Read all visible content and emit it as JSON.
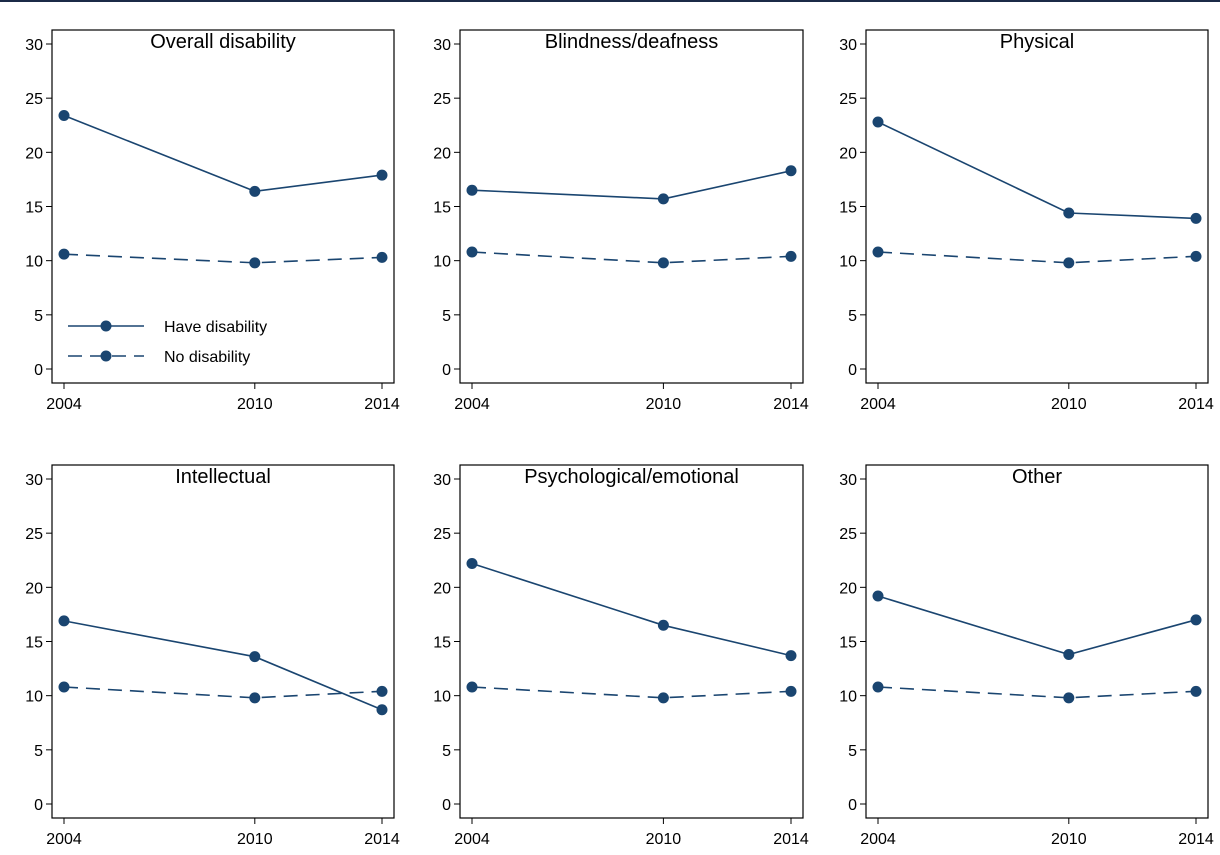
{
  "colors": {
    "series": "#1a4570",
    "axis": "#000000",
    "frame": "#000000"
  },
  "chart_data": [
    {
      "type": "line",
      "title": "Overall disability",
      "x": [
        2004,
        2010,
        2014
      ],
      "xticks": [
        "2004",
        "2010",
        "2014"
      ],
      "ylim": [
        0,
        30
      ],
      "yticks": [
        "0",
        "5",
        "10",
        "15",
        "20",
        "25",
        "30"
      ],
      "grid": false,
      "legend": "bottom-left",
      "series": [
        {
          "name": "Have disability",
          "style": "solid",
          "values": [
            23.4,
            16.4,
            17.9
          ]
        },
        {
          "name": "No disability",
          "style": "dashed",
          "values": [
            10.6,
            9.8,
            10.3
          ]
        }
      ]
    },
    {
      "type": "line",
      "title": "Blindness/deafness",
      "x": [
        2004,
        2010,
        2014
      ],
      "xticks": [
        "2004",
        "2010",
        "2014"
      ],
      "ylim": [
        0,
        30
      ],
      "yticks": [
        "0",
        "5",
        "10",
        "15",
        "20",
        "25",
        "30"
      ],
      "grid": false,
      "series": [
        {
          "style": "solid",
          "values": [
            16.5,
            15.7,
            18.3
          ]
        },
        {
          "style": "dashed",
          "values": [
            10.8,
            9.8,
            10.4
          ]
        }
      ]
    },
    {
      "type": "line",
      "title": "Physical",
      "x": [
        2004,
        2010,
        2014
      ],
      "xticks": [
        "2004",
        "2010",
        "2014"
      ],
      "ylim": [
        0,
        30
      ],
      "yticks": [
        "0",
        "5",
        "10",
        "15",
        "20",
        "25",
        "30"
      ],
      "grid": false,
      "series": [
        {
          "style": "solid",
          "values": [
            22.8,
            14.4,
            13.9
          ]
        },
        {
          "style": "dashed",
          "values": [
            10.8,
            9.8,
            10.4
          ]
        }
      ]
    },
    {
      "type": "line",
      "title": "Intellectual",
      "x": [
        2004,
        2010,
        2014
      ],
      "xticks": [
        "2004",
        "2010",
        "2014"
      ],
      "ylim": [
        0,
        30
      ],
      "yticks": [
        "0",
        "5",
        "10",
        "15",
        "20",
        "25",
        "30"
      ],
      "grid": false,
      "series": [
        {
          "style": "solid",
          "values": [
            16.9,
            13.6,
            8.7
          ]
        },
        {
          "style": "dashed",
          "values": [
            10.8,
            9.8,
            10.4
          ]
        }
      ]
    },
    {
      "type": "line",
      "title": "Psychological/emotional",
      "x": [
        2004,
        2010,
        2014
      ],
      "xticks": [
        "2004",
        "2010",
        "2014"
      ],
      "ylim": [
        0,
        30
      ],
      "yticks": [
        "0",
        "5",
        "10",
        "15",
        "20",
        "25",
        "30"
      ],
      "grid": false,
      "series": [
        {
          "style": "solid",
          "values": [
            22.2,
            16.5,
            13.7
          ]
        },
        {
          "style": "dashed",
          "values": [
            10.8,
            9.8,
            10.4
          ]
        }
      ]
    },
    {
      "type": "line",
      "title": "Other",
      "x": [
        2004,
        2010,
        2014
      ],
      "xticks": [
        "2004",
        "2010",
        "2014"
      ],
      "ylim": [
        0,
        30
      ],
      "yticks": [
        "0",
        "5",
        "10",
        "15",
        "20",
        "25",
        "30"
      ],
      "grid": false,
      "series": [
        {
          "style": "solid",
          "values": [
            19.2,
            13.8,
            17.0
          ]
        },
        {
          "style": "dashed",
          "values": [
            10.8,
            9.8,
            10.4
          ]
        }
      ]
    }
  ]
}
